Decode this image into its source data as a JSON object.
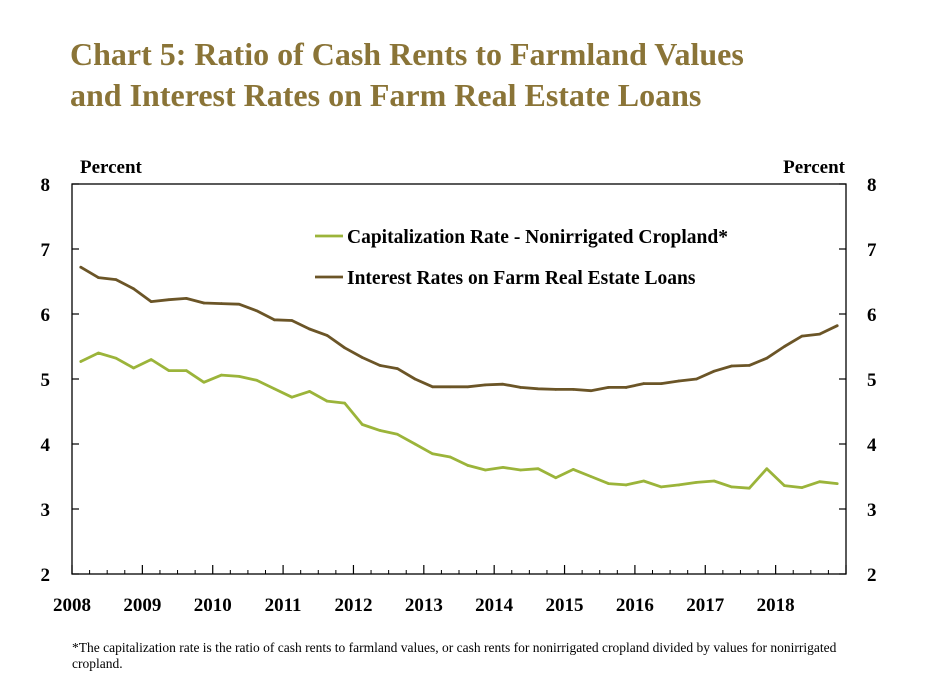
{
  "title_lines": [
    "Chart 5: Ratio of Cash Rents to Farmland Values",
    "and Interest Rates on Farm Real Estate Loans"
  ],
  "footnote": "*The capitalization rate is the ratio of cash rents to farmland values, or cash rents for nonirrigated cropland divided by values for nonirrigated cropland.",
  "colors": {
    "title": "#8a7437",
    "cap_rate": "#9bb43a",
    "interest": "#6b5527"
  },
  "chart_data": {
    "type": "line",
    "left_axis_label": "Percent",
    "right_axis_label": "Percent",
    "ylim": [
      2,
      8
    ],
    "yticks": [
      2,
      3,
      4,
      5,
      6,
      7,
      8
    ],
    "xlim": [
      2008,
      2019
    ],
    "xtick_labels": [
      "2008",
      "2009",
      "2010",
      "2011",
      "2012",
      "2013",
      "2014",
      "2015",
      "2016",
      "2017",
      "2018"
    ],
    "legend_position": "top-right",
    "grid": false,
    "x": [
      2008.125,
      2008.375,
      2008.625,
      2008.875,
      2009.125,
      2009.375,
      2009.625,
      2009.875,
      2010.125,
      2010.375,
      2010.625,
      2010.875,
      2011.125,
      2011.375,
      2011.625,
      2011.875,
      2012.125,
      2012.375,
      2012.625,
      2012.875,
      2013.125,
      2013.375,
      2013.625,
      2013.875,
      2014.125,
      2014.375,
      2014.625,
      2014.875,
      2015.125,
      2015.375,
      2015.625,
      2015.875,
      2016.125,
      2016.375,
      2016.625,
      2016.875,
      2017.125,
      2017.375,
      2017.625,
      2017.875,
      2018.125,
      2018.375,
      2018.625,
      2018.875
    ],
    "series": [
      {
        "name": "Capitalization Rate - Nonirrigated Cropland*",
        "values": [
          5.27,
          5.4,
          5.32,
          5.17,
          5.3,
          5.13,
          5.13,
          4.95,
          5.06,
          5.04,
          4.98,
          4.85,
          4.72,
          4.81,
          4.66,
          4.63,
          4.3,
          4.21,
          4.15,
          4.0,
          3.85,
          3.8,
          3.67,
          3.6,
          3.64,
          3.6,
          3.62,
          3.48,
          3.61,
          3.5,
          3.39,
          3.37,
          3.43,
          3.34,
          3.37,
          3.41,
          3.43,
          3.34,
          3.32,
          3.62,
          3.36,
          3.33,
          3.42,
          3.39
        ]
      },
      {
        "name": "Interest Rates on Farm Real Estate Loans",
        "values": [
          6.72,
          6.56,
          6.53,
          6.39,
          6.19,
          6.22,
          6.24,
          6.17,
          6.16,
          6.15,
          6.05,
          5.91,
          5.9,
          5.77,
          5.67,
          5.48,
          5.33,
          5.21,
          5.16,
          5.0,
          4.88,
          4.88,
          4.88,
          4.91,
          4.92,
          4.87,
          4.85,
          4.84,
          4.84,
          4.82,
          4.87,
          4.87,
          4.93,
          4.93,
          4.97,
          5.0,
          5.12,
          5.2,
          5.21,
          5.32,
          5.5,
          5.66,
          5.69,
          5.82
        ]
      }
    ]
  }
}
